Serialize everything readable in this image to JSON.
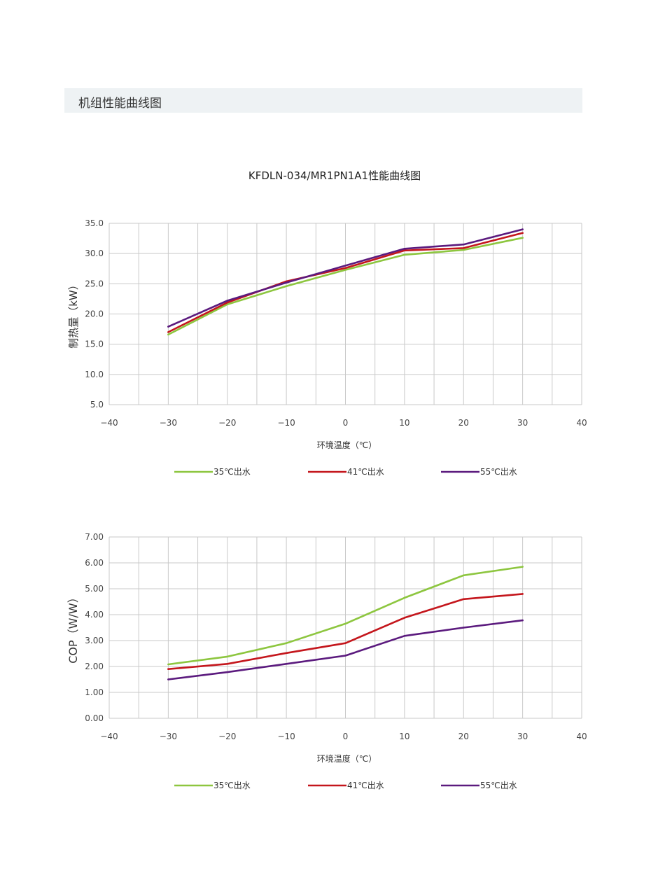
{
  "section": {
    "title": "机组性能曲线图"
  },
  "main_title": "KFDLN-034/MR1PN1A1性能曲线图",
  "colors": {
    "series_35": "#8dc63f",
    "series_41": "#c4161c",
    "series_55": "#5b1a7e",
    "grid": "#c9c9c9",
    "banner": "#eef2f4"
  },
  "chart_data": [
    {
      "type": "line",
      "title": "",
      "xlabel": "环境温度（℃）",
      "ylabel": "制热量（kW）",
      "xlim": [
        -40,
        40
      ],
      "ylim": [
        5,
        35
      ],
      "x_ticks": [
        "−40",
        "−30",
        "−20",
        "−10",
        "0",
        "10",
        "20",
        "30",
        "40"
      ],
      "y_ticks": [
        "5.0",
        "10.0",
        "15.0",
        "20.0",
        "25.0",
        "30.0",
        "35.0"
      ],
      "grid": true,
      "legend_position": "bottom",
      "x": [
        -30,
        -20,
        -10,
        0,
        10,
        20,
        30
      ],
      "series": [
        {
          "name": "35℃出水",
          "color": "#8dc63f",
          "values": [
            16.6,
            21.6,
            24.6,
            27.3,
            29.8,
            30.6,
            32.6
          ]
        },
        {
          "name": "41℃出水",
          "color": "#c4161c",
          "values": [
            17.0,
            21.9,
            25.4,
            27.6,
            30.5,
            30.9,
            33.4
          ]
        },
        {
          "name": "55℃出水",
          "color": "#5b1a7e",
          "values": [
            17.9,
            22.2,
            25.2,
            28.0,
            30.8,
            31.5,
            34.0
          ]
        }
      ]
    },
    {
      "type": "line",
      "title": "",
      "xlabel": "环境温度（℃）",
      "ylabel": "COP（W/W）",
      "xlim": [
        -40,
        40
      ],
      "ylim": [
        0,
        7
      ],
      "x_ticks": [
        "−40",
        "−30",
        "−20",
        "−10",
        "0",
        "10",
        "20",
        "30",
        "40"
      ],
      "y_ticks": [
        "0.00",
        "1.00",
        "2.00",
        "3.00",
        "4.00",
        "5.00",
        "6.00",
        "7.00"
      ],
      "grid": true,
      "legend_position": "bottom",
      "x": [
        -30,
        -20,
        -10,
        0,
        10,
        20,
        30
      ],
      "series": [
        {
          "name": "35℃出水",
          "color": "#8dc63f",
          "values": [
            2.08,
            2.38,
            2.9,
            3.65,
            4.65,
            5.52,
            5.85
          ]
        },
        {
          "name": "41℃出水",
          "color": "#c4161c",
          "values": [
            1.9,
            2.1,
            2.52,
            2.9,
            3.88,
            4.6,
            4.8
          ]
        },
        {
          "name": "55℃出水",
          "color": "#5b1a7e",
          "values": [
            1.5,
            1.78,
            2.1,
            2.42,
            3.18,
            3.5,
            3.78
          ]
        }
      ]
    }
  ]
}
